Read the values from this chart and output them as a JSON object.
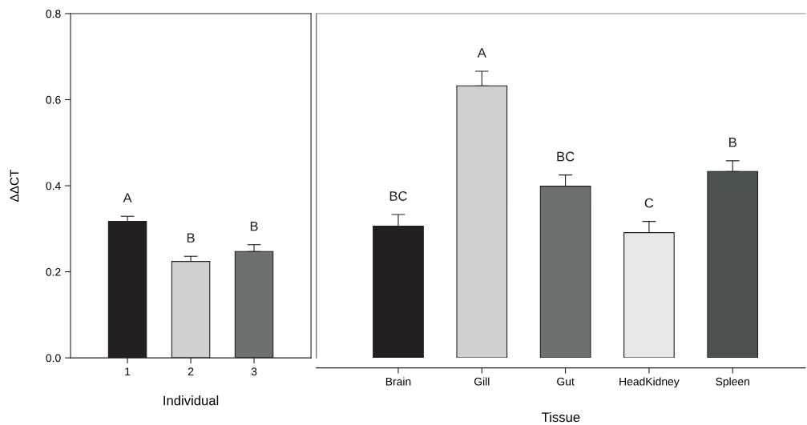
{
  "chart_data": [
    {
      "type": "bar",
      "xlabel": "Individual",
      "ylabel": "ΔΔCT",
      "categories": [
        "1",
        "2",
        "3"
      ],
      "values": [
        0.317,
        0.224,
        0.247
      ],
      "errors": [
        [
          0.317,
          0.329
        ],
        [
          0.224,
          0.236
        ],
        [
          0.247,
          0.263
        ]
      ],
      "colors": [
        "#231f20",
        "#d0d0d0",
        "#6d7070"
      ],
      "ylim": [
        0,
        0.8
      ],
      "yticks": [
        {
          "value": 0,
          "label": "0.0"
        },
        0.2,
        0.4,
        0.6,
        0.8
      ],
      "annotations": [
        "A",
        "B",
        "B"
      ]
    },
    {
      "type": "bar",
      "xlabel": "Tissue",
      "categories": [
        "Brain",
        "Gill",
        "Gut",
        "HeadKidney",
        "Spleen"
      ],
      "values": [
        0.306,
        0.632,
        0.399,
        0.291,
        0.433
      ],
      "errors": [
        [
          0.306,
          0.333
        ],
        [
          0.632,
          0.666
        ],
        [
          0.399,
          0.425
        ],
        [
          0.291,
          0.317
        ],
        [
          0.433,
          0.458
        ]
      ],
      "colors": [
        "#231f20",
        "#d0d0d0",
        "#6d7070",
        "#e8e7e6",
        "#4b5250"
      ],
      "ylim": [
        0,
        0.8
      ],
      "tick_labels": "x",
      "annotations": [
        "BC",
        "A",
        "BC",
        "C",
        "B"
      ]
    }
  ]
}
